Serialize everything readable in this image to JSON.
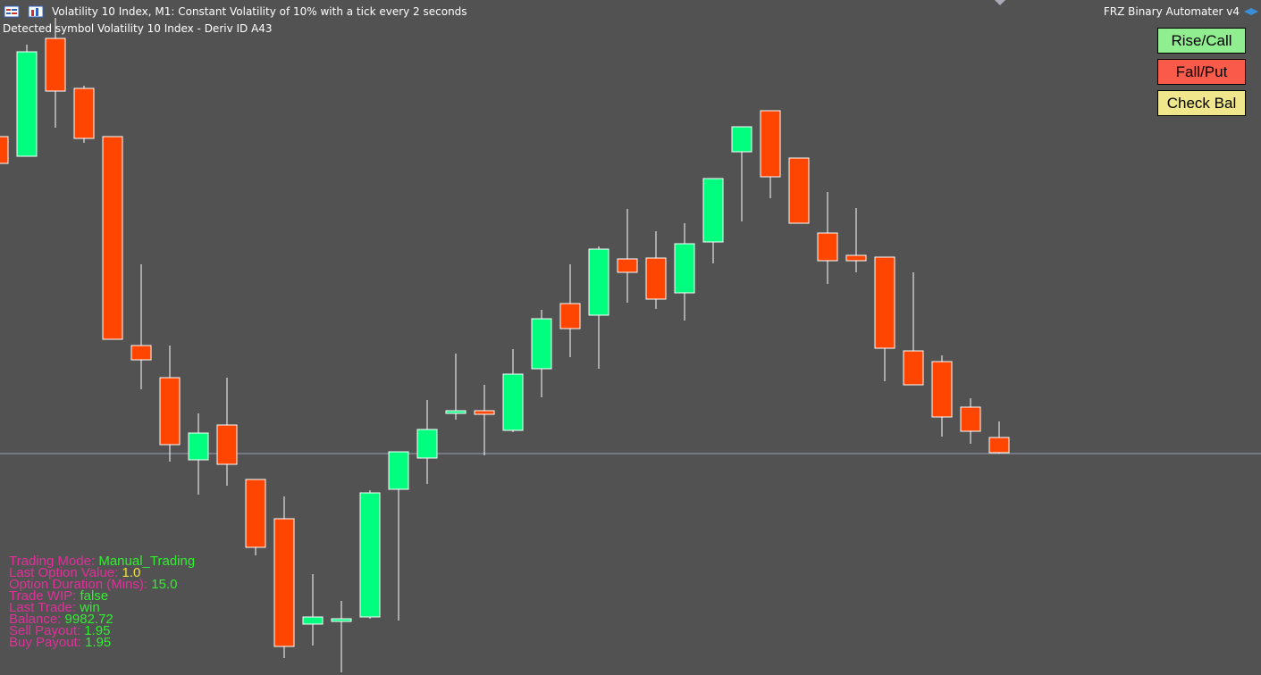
{
  "header": {
    "title": "Volatility 10 Index, M1:  Constant Volatility of 10% with a tick every 2 seconds",
    "detected": "Detected symbol Volatility 10 Index - Deriv ID A43",
    "app_name": "FRZ Binary Automater v4"
  },
  "buttons": [
    "Rise/Call",
    "Fall/Put",
    "Check Bal"
  ],
  "info_panel": [
    {
      "label": "Trading Mode:",
      "value": "Manual_Trading"
    },
    {
      "label": "Last Option Value:",
      "value": "1.0"
    },
    {
      "label": "Option Duration (Mins):",
      "value": "15.0"
    },
    {
      "label": "Trade WIP:",
      "value": "false"
    },
    {
      "label": "Last Trade:",
      "value": "win"
    },
    {
      "label": "Balance:",
      "value": "9982.72"
    },
    {
      "label": "Sell Payout:",
      "value": "1.95"
    },
    {
      "label": "Buy Payout:",
      "value": "1.95"
    }
  ]
}
